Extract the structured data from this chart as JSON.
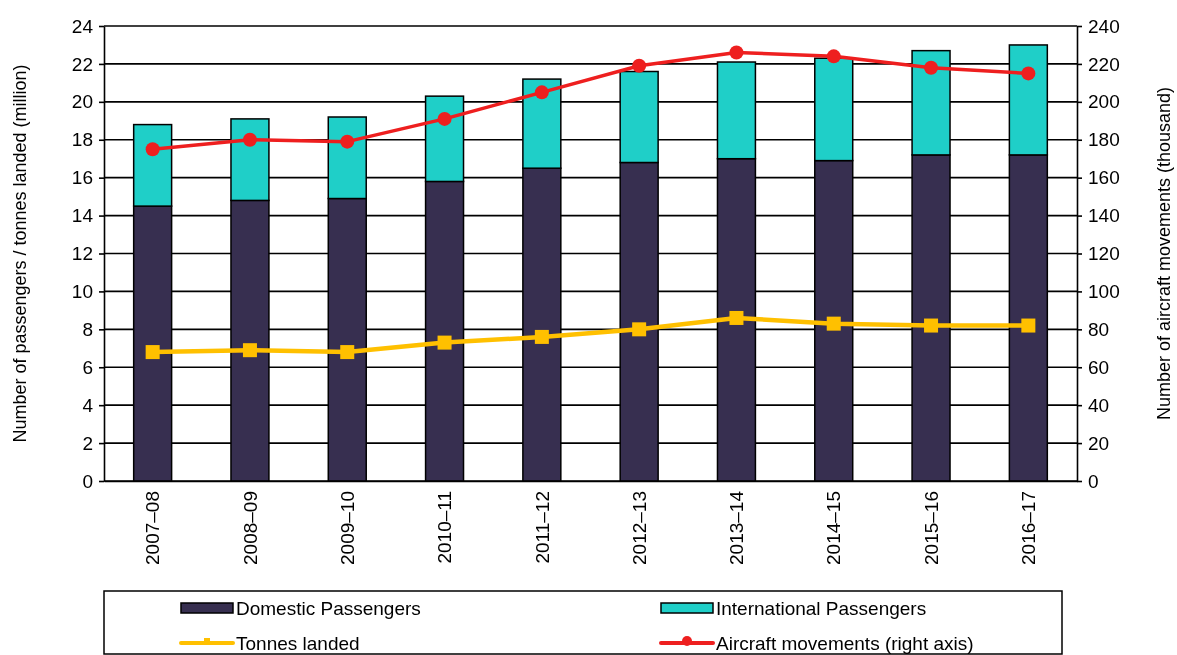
{
  "chart_data": {
    "type": "bar",
    "stacked": true,
    "categories": [
      "2007–08",
      "2008–09",
      "2009–10",
      "2010–11",
      "2011–12",
      "2012–13",
      "2013–14",
      "2014–15",
      "2015–16",
      "2016–17"
    ],
    "ylabel": "Number of passengers / tonnes landed (million)",
    "y2label": "Number of aircraft movements (thousand)",
    "ylim": [
      0,
      24
    ],
    "yticks": [
      0,
      2,
      4,
      6,
      8,
      10,
      12,
      14,
      16,
      18,
      20,
      22,
      24
    ],
    "y2lim": [
      0,
      240
    ],
    "y2ticks": [
      0,
      20,
      40,
      60,
      80,
      100,
      120,
      140,
      160,
      180,
      200,
      220,
      240
    ],
    "grid": "y",
    "legend": "bottom",
    "series": [
      {
        "name": "Domestic Passengers",
        "color": "#372f50",
        "values": [
          14.5,
          14.8,
          14.9,
          15.8,
          16.5,
          16.8,
          17.0,
          16.9,
          17.2,
          17.2
        ]
      },
      {
        "name": "International Passengers",
        "color": "#1fcfc8",
        "values": [
          4.3,
          4.3,
          4.3,
          4.5,
          4.7,
          4.8,
          5.1,
          5.4,
          5.5,
          5.8
        ]
      },
      {
        "name": "Tonnes landed",
        "type": "line",
        "color": "#ffc000",
        "marker": "square",
        "values": [
          6.8,
          6.9,
          6.8,
          7.3,
          7.6,
          8.0,
          8.6,
          8.3,
          8.2,
          8.2
        ]
      },
      {
        "name": "Aircraft movements (right axis)",
        "type": "line",
        "axis": "y2",
        "color": "#ee1f1f",
        "marker": "circle",
        "values": [
          175,
          180,
          179,
          191,
          205,
          219,
          226,
          224,
          218,
          215
        ]
      }
    ]
  }
}
